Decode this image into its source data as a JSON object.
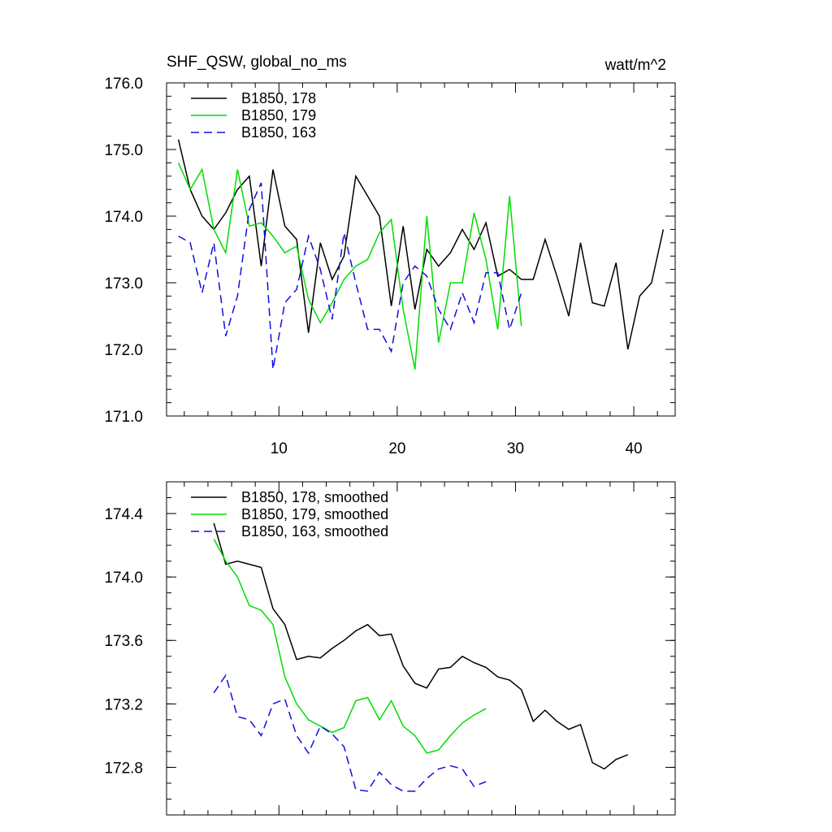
{
  "chart_data": [
    {
      "type": "line",
      "title": "SHF_QSW, global_no_ms",
      "units": "watt/m^2",
      "ylim": [
        171.0,
        176.0
      ],
      "xlim": [
        0.5,
        43.5
      ],
      "yticks": [
        "171.0",
        "172.0",
        "173.0",
        "174.0",
        "175.0",
        "176.0"
      ],
      "xticks": [
        "10",
        "20",
        "30",
        "40"
      ],
      "series": [
        {
          "name": "B1850, 178",
          "color": "#000000",
          "dash": "solid",
          "x": [
            1.5,
            2.5,
            3.5,
            4.5,
            5.5,
            6.5,
            7.5,
            8.5,
            9.5,
            10.5,
            11.5,
            12.5,
            13.5,
            14.5,
            15.5,
            16.5,
            17.5,
            18.5,
            19.5,
            20.5,
            21.5,
            22.5,
            23.5,
            24.5,
            25.5,
            26.5,
            27.5,
            28.5,
            29.5,
            30.5,
            31.5,
            32.5,
            33.5,
            34.5,
            35.5,
            36.5,
            37.5,
            38.5,
            39.5,
            40.5,
            41.5,
            42.5
          ],
          "y": [
            175.15,
            174.4,
            174.0,
            173.8,
            174.05,
            174.4,
            174.6,
            173.25,
            174.7,
            173.85,
            173.65,
            172.25,
            173.6,
            173.05,
            173.4,
            174.6,
            174.3,
            174.0,
            172.65,
            173.85,
            172.6,
            173.5,
            173.25,
            173.45,
            173.8,
            173.5,
            173.9,
            173.1,
            173.2,
            173.05,
            173.05,
            173.65,
            173.1,
            172.5,
            173.6,
            172.7,
            172.65,
            173.3,
            172.0,
            172.8,
            173.0,
            173.8
          ]
        },
        {
          "name": "B1850, 179",
          "color": "#00dd00",
          "dash": "solid",
          "x": [
            1.5,
            2.5,
            3.5,
            4.5,
            5.5,
            6.5,
            7.5,
            8.5,
            9.5,
            10.5,
            11.5,
            12.5,
            13.5,
            14.5,
            15.5,
            16.5,
            17.5,
            18.5,
            19.5,
            20.5,
            21.5,
            22.5,
            23.5,
            24.5,
            25.5,
            26.5,
            27.5,
            28.5,
            29.5,
            30.5
          ],
          "y": [
            174.8,
            174.4,
            174.7,
            173.8,
            173.45,
            174.7,
            173.85,
            173.9,
            173.7,
            173.45,
            173.55,
            172.75,
            172.4,
            172.7,
            173.05,
            173.25,
            173.35,
            173.75,
            173.95,
            172.6,
            171.7,
            174.0,
            172.1,
            173.0,
            173.0,
            174.05,
            173.35,
            172.3,
            174.3,
            172.35
          ]
        },
        {
          "name": "B1850, 163",
          "color": "#1010dd",
          "dash": "dashed",
          "x": [
            1.5,
            2.5,
            3.5,
            4.5,
            5.5,
            6.5,
            7.5,
            8.5,
            9.5,
            10.5,
            11.5,
            12.5,
            13.5,
            14.5,
            15.5,
            16.5,
            17.5,
            18.5,
            19.5,
            20.5,
            21.5,
            22.5,
            23.5,
            24.5,
            25.5,
            26.5,
            27.5,
            28.5,
            29.5,
            30.5
          ],
          "y": [
            173.7,
            173.6,
            172.85,
            173.6,
            172.2,
            172.8,
            174.1,
            174.5,
            171.7,
            172.7,
            172.9,
            173.7,
            173.2,
            172.45,
            173.75,
            173.0,
            172.3,
            172.3,
            171.97,
            173.0,
            173.25,
            173.1,
            172.6,
            172.3,
            172.85,
            172.4,
            173.15,
            173.15,
            172.3,
            172.85
          ]
        }
      ]
    },
    {
      "type": "line",
      "ylim": [
        172.5,
        174.6
      ],
      "xlim": [
        0.5,
        43.5
      ],
      "yticks": [
        "172.8",
        "173.2",
        "173.6",
        "174.0",
        "174.4"
      ],
      "series": [
        {
          "name": "B1850, 178, smoothed",
          "color": "#000000",
          "dash": "solid",
          "x": [
            4.5,
            5.5,
            6.5,
            7.5,
            8.5,
            9.5,
            10.5,
            11.5,
            12.5,
            13.5,
            14.5,
            15.5,
            16.5,
            17.5,
            18.5,
            19.5,
            20.5,
            21.5,
            22.5,
            23.5,
            24.5,
            25.5,
            26.5,
            27.5,
            28.5,
            29.5,
            30.5,
            31.5,
            32.5,
            33.5,
            34.5,
            35.5,
            36.5,
            37.5,
            38.5,
            39.5
          ],
          "y": [
            174.34,
            174.08,
            174.1,
            174.08,
            174.06,
            173.8,
            173.7,
            173.48,
            173.5,
            173.49,
            173.55,
            173.6,
            173.66,
            173.7,
            173.63,
            173.64,
            173.44,
            173.33,
            173.3,
            173.42,
            173.43,
            173.5,
            173.46,
            173.43,
            173.37,
            173.35,
            173.29,
            173.09,
            173.16,
            173.09,
            173.04,
            173.07,
            172.83,
            172.79,
            172.85,
            172.88
          ]
        },
        {
          "name": "B1850, 179, smoothed",
          "color": "#00dd00",
          "dash": "solid",
          "x": [
            4.5,
            5.5,
            6.5,
            7.5,
            8.5,
            9.5,
            10.5,
            11.5,
            12.5,
            13.5,
            14.5,
            15.5,
            16.5,
            17.5,
            18.5,
            19.5,
            20.5,
            21.5,
            22.5,
            23.5,
            24.5,
            25.5,
            26.5,
            27.5
          ],
          "y": [
            174.24,
            174.1,
            174.0,
            173.82,
            173.79,
            173.7,
            173.37,
            173.2,
            173.1,
            173.06,
            173.02,
            173.05,
            173.22,
            173.24,
            173.1,
            173.22,
            173.06,
            173.0,
            172.89,
            172.91,
            173.0,
            173.08,
            173.13,
            173.17
          ]
        },
        {
          "name": "B1850, 163, smoothed",
          "color": "#1010dd",
          "dash": "dashed",
          "x": [
            4.5,
            5.5,
            6.5,
            7.5,
            8.5,
            9.5,
            10.5,
            11.5,
            12.5,
            13.5,
            14.5,
            15.5,
            16.5,
            17.5,
            18.5,
            19.5,
            20.5,
            21.5,
            22.5,
            23.5,
            24.5,
            25.5,
            26.5,
            27.5
          ],
          "y": [
            173.27,
            173.38,
            173.12,
            173.1,
            173.0,
            173.2,
            173.23,
            173.0,
            172.89,
            173.06,
            173.01,
            172.93,
            172.66,
            172.65,
            172.77,
            172.69,
            172.65,
            172.65,
            172.73,
            172.79,
            172.81,
            172.79,
            172.68,
            172.71
          ]
        }
      ]
    }
  ]
}
